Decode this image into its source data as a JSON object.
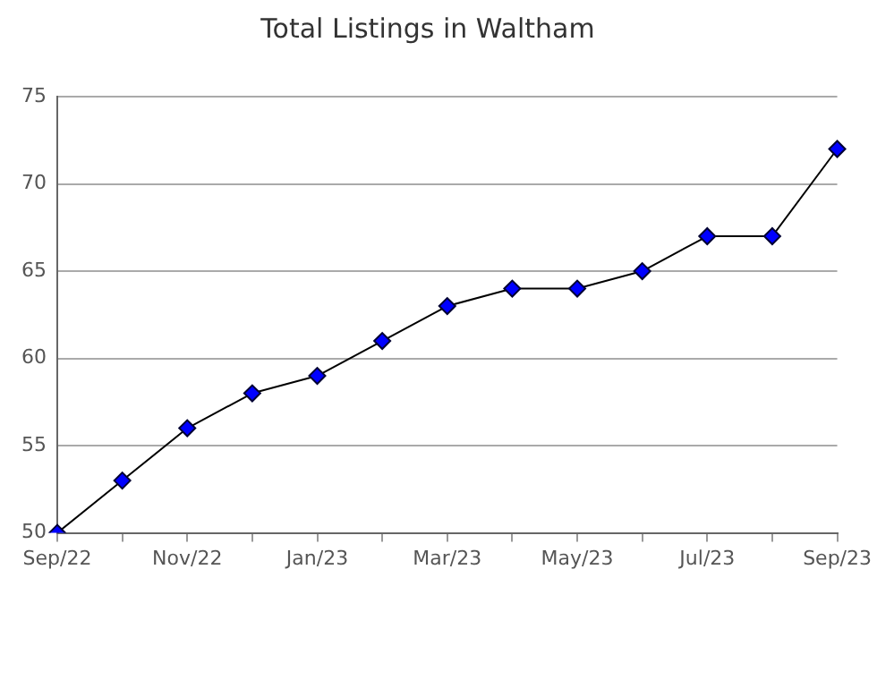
{
  "chart_data": {
    "type": "line",
    "title": "Total Listings in Waltham",
    "categories": [
      "Sep/22",
      null,
      "Nov/22",
      null,
      "Jan/23",
      null,
      "Mar/23",
      null,
      "May/23",
      null,
      "Jul/23",
      null,
      "Sep/23"
    ],
    "series": [
      {
        "color": "#0000ff",
        "values": [
          50,
          53,
          56,
          58,
          59,
          61,
          63,
          64,
          64,
          65,
          67,
          67,
          72
        ]
      }
    ],
    "ylim": [
      50,
      75
    ],
    "yticks": [
      50,
      55,
      60,
      65,
      70,
      75
    ],
    "grid": "y",
    "legend": false,
    "marker": "diamond",
    "line_style": "solid"
  }
}
